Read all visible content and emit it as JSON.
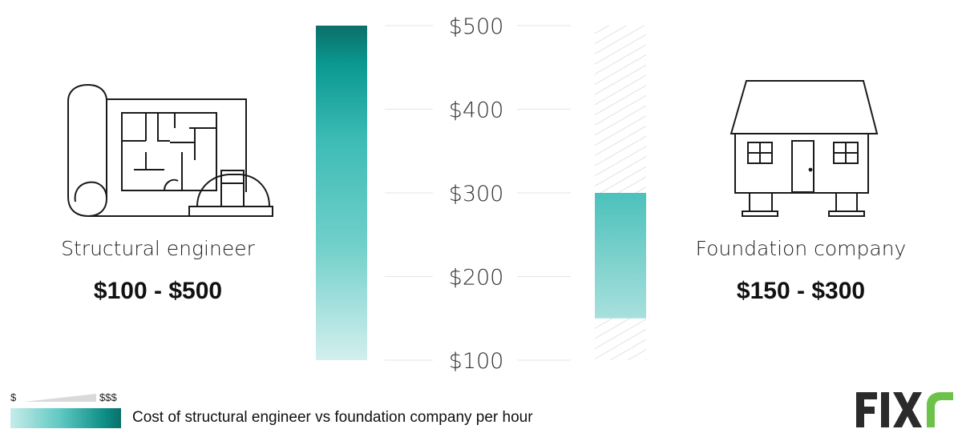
{
  "chart_data": {
    "type": "range-bar",
    "categories": [
      "Structural engineer",
      "Foundation company"
    ],
    "series": [
      {
        "category": "Structural engineer",
        "low": 100,
        "high": 500
      },
      {
        "category": "Foundation company",
        "low": 150,
        "high": 300
      }
    ],
    "y_ticks": [
      "$100",
      "$200",
      "$300",
      "$400",
      "$500"
    ],
    "y_tick_values": [
      100,
      200,
      300,
      400,
      500
    ],
    "ylim": [
      100,
      500
    ],
    "grid": true,
    "colors": {
      "dark": "#0b6f69",
      "mid": "#3fbcb6",
      "light": "#d3efee"
    }
  },
  "labels": {
    "left_name": "Structural engineer",
    "left_range": "$100 - $500",
    "right_name": "Foundation company",
    "right_range": "$150 - $300"
  },
  "legend": {
    "min": "$",
    "max": "$$$",
    "caption": "Cost of structural engineer vs foundation company per hour"
  },
  "icons": {
    "left": "blueprint-hardhat-icon",
    "right": "house-on-piers-icon",
    "logo": "fixr-logo"
  }
}
